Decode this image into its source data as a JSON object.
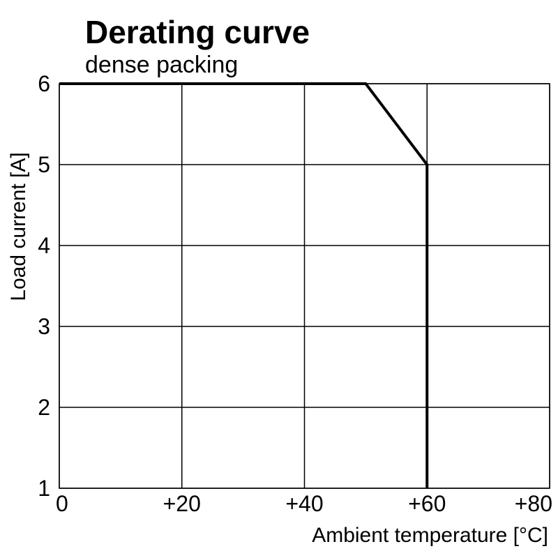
{
  "chart_data": {
    "type": "line",
    "title": "Derating curve",
    "subtitle": "dense packing",
    "xlabel": "Ambient temperature [°C]",
    "ylabel": "Load current [A]",
    "xlim": [
      0,
      80
    ],
    "ylim": [
      1,
      6
    ],
    "x_ticks": [
      0,
      20,
      40,
      60,
      80
    ],
    "x_tick_labels": [
      "0",
      "+20",
      "+40",
      "+60",
      "+80"
    ],
    "y_ticks": [
      1,
      2,
      3,
      4,
      5,
      6
    ],
    "y_tick_labels": [
      "1",
      "2",
      "3",
      "4",
      "5",
      "6"
    ],
    "grid": true,
    "series": [
      {
        "x": [
          0,
          50,
          60,
          60
        ],
        "y": [
          6,
          6,
          5,
          1
        ]
      }
    ],
    "colors": {
      "line": "#000000",
      "grid": "#000000"
    }
  }
}
